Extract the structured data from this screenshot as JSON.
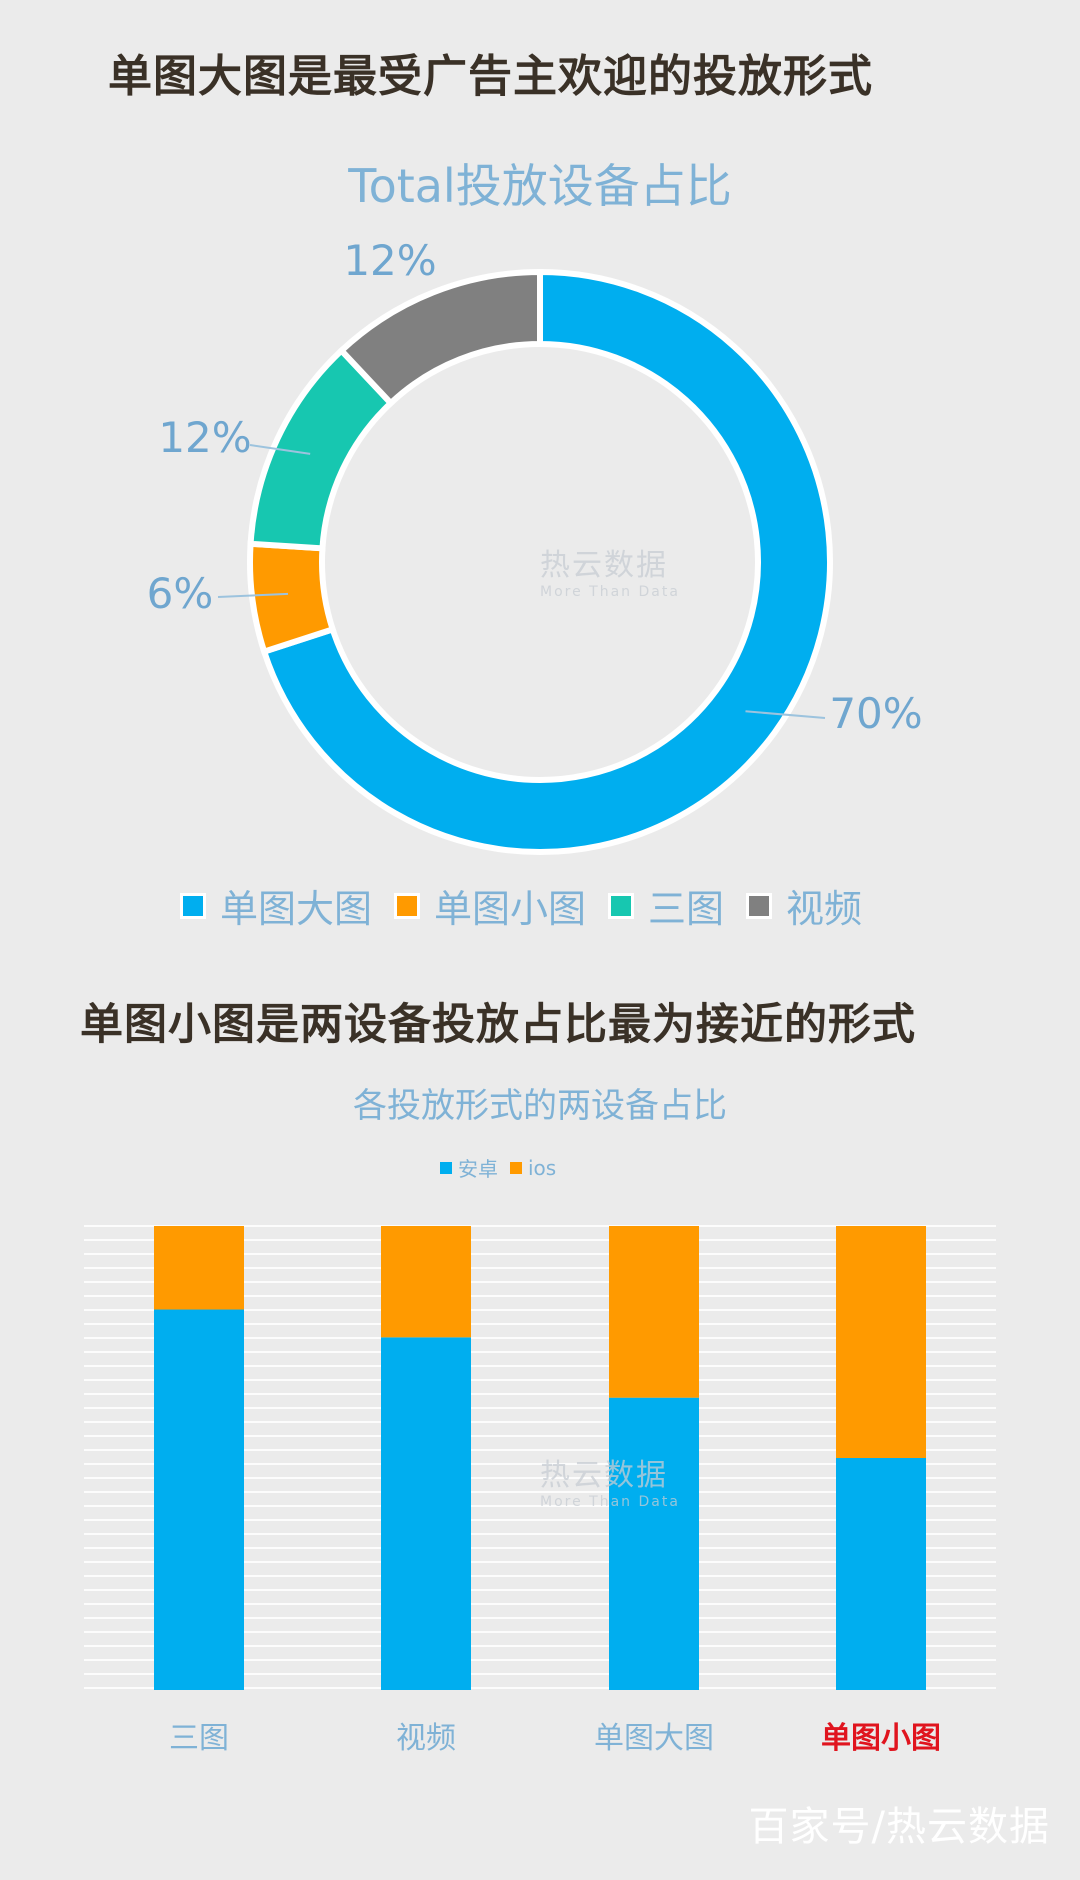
{
  "headline_1": "单图大图是最受广告主欢迎的投放形式",
  "headline_2": "单图小图是两设备投放占比最为接近的形式",
  "watermark": {
    "brand": "热云数据",
    "tagline": "More Than Data"
  },
  "footer_credit": "百家号/热云数据",
  "colors": {
    "blue": "#00aeef",
    "orange": "#ff9a00",
    "teal": "#17c7b0",
    "gray": "#808080",
    "highlight": "#e0141e"
  },
  "chart_data": [
    {
      "type": "pie",
      "style": "donut",
      "title": "Total投放设备占比",
      "categories": [
        "单图大图",
        "单图小图",
        "三图",
        "视频"
      ],
      "values": [
        70,
        6,
        12,
        12
      ],
      "labels": [
        "70%",
        "6%",
        "12%",
        "12%"
      ],
      "colors": [
        "#00aeef",
        "#ff9a00",
        "#17c7b0",
        "#808080"
      ],
      "legend": "bottom"
    },
    {
      "type": "bar",
      "stacked": true,
      "percent": true,
      "title": "各投放形式的两设备占比",
      "categories": [
        "三图",
        "视频",
        "单图大图",
        "单图小图"
      ],
      "highlight_category": "单图小图",
      "series": [
        {
          "name": "安卓",
          "values": [
            82,
            76,
            63,
            50
          ],
          "color": "#00aeef"
        },
        {
          "name": "ios",
          "values": [
            18,
            24,
            37,
            50
          ],
          "color": "#ff9a00"
        }
      ],
      "ylim": [
        0,
        100
      ],
      "grid": true,
      "legend": "top"
    }
  ]
}
